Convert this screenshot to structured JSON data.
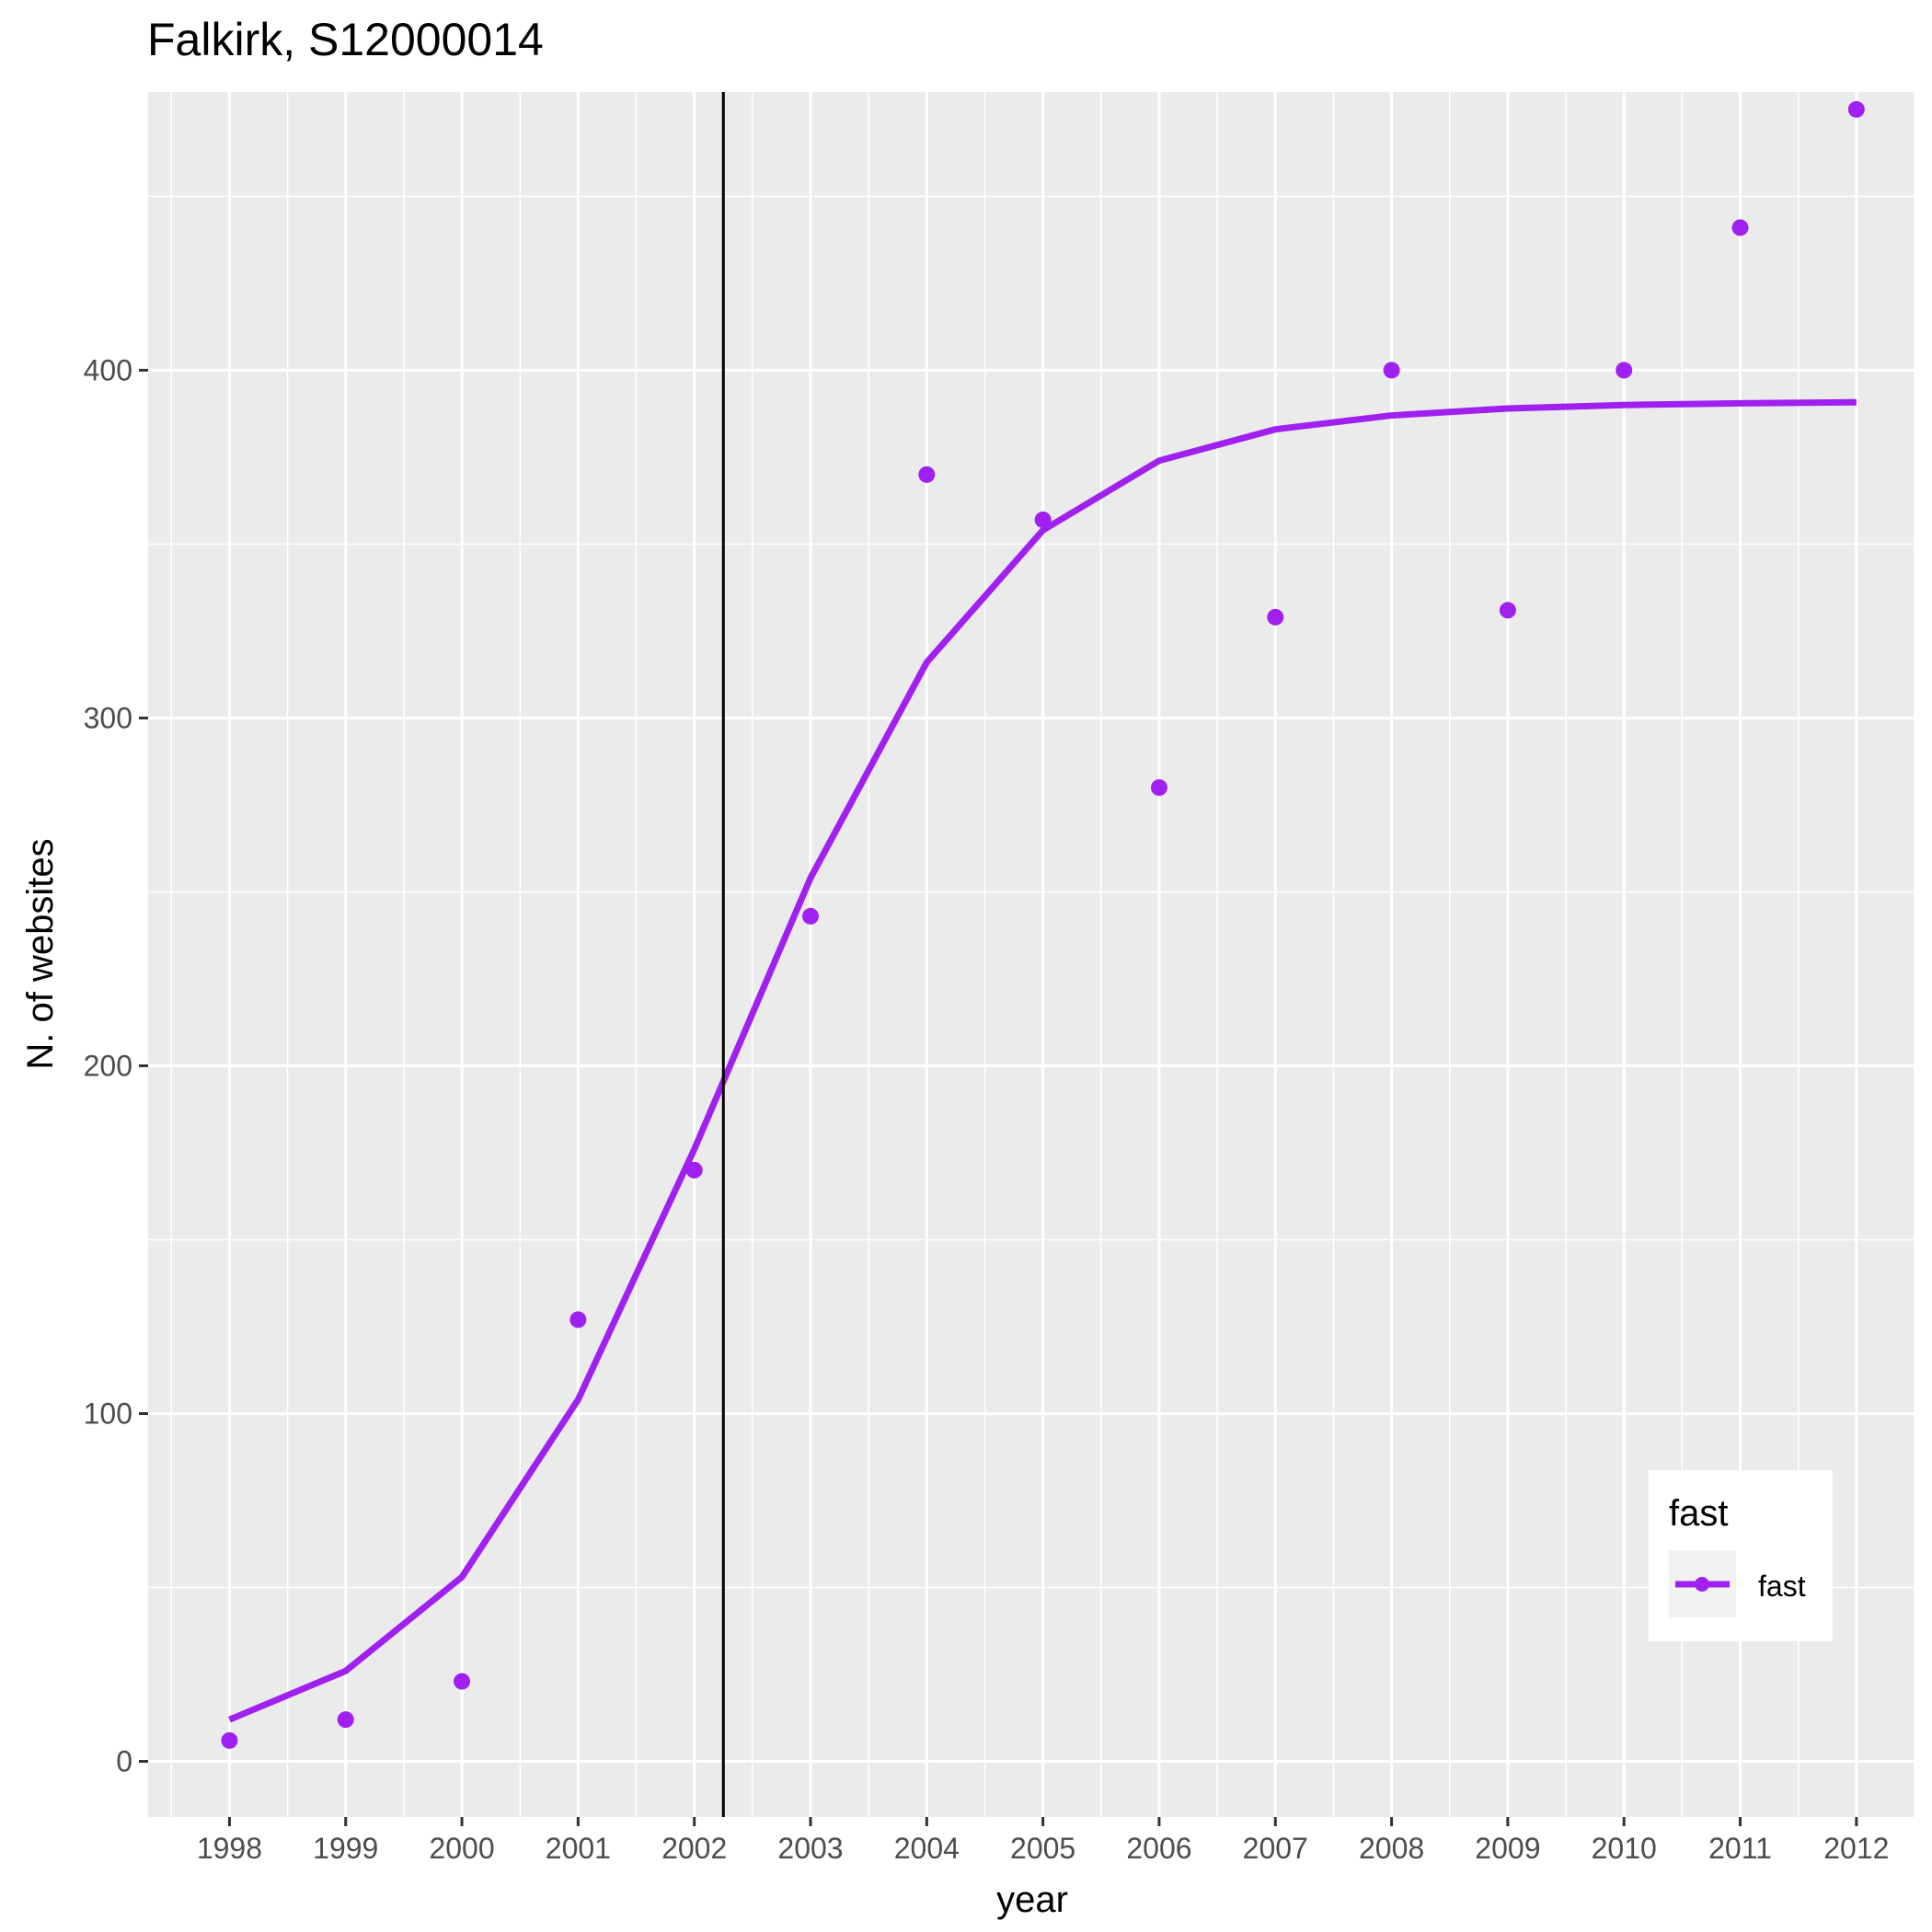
{
  "chart_data": {
    "type": "line",
    "title": "Falkirk, S12000014",
    "xlabel": "year",
    "ylabel": "N. of websites",
    "xlim": [
      1997.3,
      2012.5
    ],
    "ylim": [
      -16,
      480
    ],
    "x_ticks": [
      1998,
      1999,
      2000,
      2001,
      2002,
      2003,
      2004,
      2005,
      2006,
      2007,
      2008,
      2009,
      2010,
      2011,
      2012
    ],
    "x_tick_labels": [
      "1998",
      "1999",
      "2000",
      "2001",
      "2002",
      "2003",
      "2004",
      "2005",
      "2006",
      "2007",
      "2008",
      "2009",
      "2010",
      "2011",
      "2012"
    ],
    "y_ticks": [
      0,
      100,
      200,
      300,
      400
    ],
    "y_tick_labels": [
      "0",
      "100",
      "200",
      "300",
      "400"
    ],
    "grid": true,
    "background": "#ebebeb",
    "series_color": "#a020f0",
    "x": [
      1998,
      1999,
      2000,
      2001,
      2002,
      2003,
      2004,
      2005,
      2006,
      2007,
      2008,
      2009,
      2010,
      2011,
      2012
    ],
    "series": [
      {
        "name": "fast",
        "kind": "points",
        "values": [
          6,
          12,
          23,
          127,
          170,
          243,
          370,
          357,
          280,
          329,
          400,
          331,
          400,
          441,
          475
        ]
      },
      {
        "name": "fast",
        "kind": "fitted-line",
        "values": [
          12,
          26,
          53,
          104,
          176,
          254,
          316,
          354,
          374,
          383,
          387,
          389,
          390,
          390.5,
          390.8
        ]
      }
    ],
    "vline_x": 2002.25,
    "legend": {
      "title": "fast",
      "entries": [
        "fast"
      ],
      "position": "bottom-right inside"
    }
  }
}
